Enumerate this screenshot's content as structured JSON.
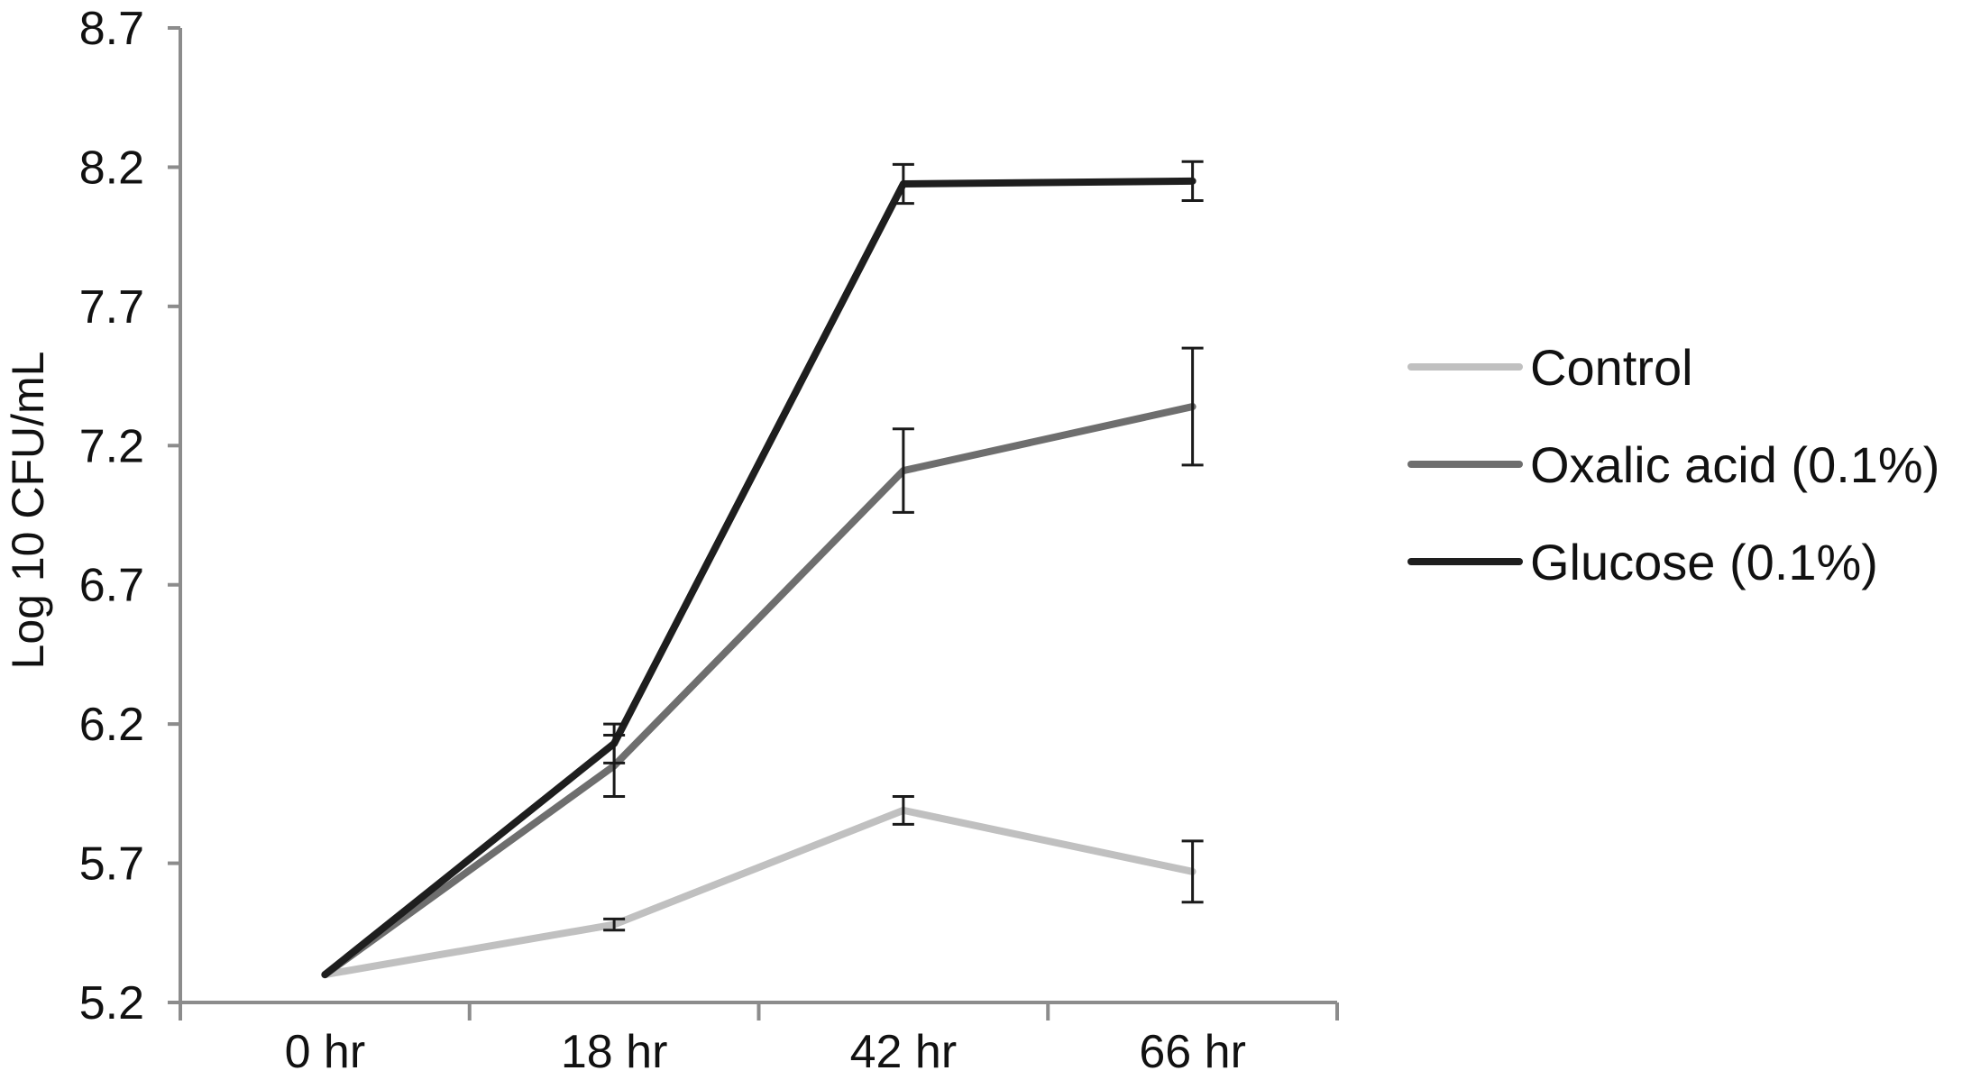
{
  "chart_data": {
    "type": "line",
    "title": "",
    "xlabel": "",
    "ylabel": "Log 10 CFU/mL",
    "categories": [
      "0 hr",
      "18 hr",
      "42 hr",
      "66 hr"
    ],
    "ylim": [
      5.2,
      8.7
    ],
    "yticks": [
      "5.2",
      "5.7",
      "6.2",
      "6.7",
      "7.2",
      "7.7",
      "8.2",
      "8.7"
    ],
    "grid": false,
    "legend_position": "right",
    "series": [
      {
        "name": "Control",
        "color": "#c0c0c0",
        "values": [
          5.3,
          5.48,
          5.89,
          5.67
        ],
        "error": [
          0,
          0.02,
          0.05,
          0.11
        ]
      },
      {
        "name": "Oxalic acid (0.1%)",
        "color": "#6e6e6e",
        "values": [
          5.3,
          6.05,
          7.11,
          7.34
        ],
        "error": [
          0,
          0.11,
          0.15,
          0.21
        ]
      },
      {
        "name": "Glucose (0.1%)",
        "color": "#1e1e1e",
        "values": [
          5.3,
          6.13,
          8.14,
          8.15
        ],
        "error": [
          0,
          0.07,
          0.07,
          0.07
        ]
      }
    ]
  }
}
